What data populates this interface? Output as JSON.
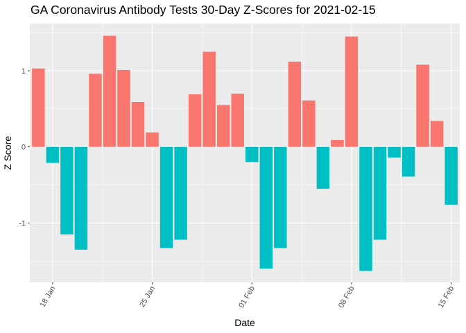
{
  "chart_data": {
    "type": "bar",
    "title": "GA Coronavirus Antibody Tests 30-Day Z-Scores for 2021-02-15",
    "xlabel": "Date",
    "ylabel": "Z Score",
    "x_ticks": [
      "18 Jan",
      "25 Jan",
      "01 Feb",
      "08 Feb",
      "15 Feb"
    ],
    "y_ticks": [
      "-1",
      "0",
      "1"
    ],
    "y_tick_values": [
      -1,
      0,
      1
    ],
    "ylim": [
      -1.78,
      1.62
    ],
    "start_date": "2021-01-17",
    "end_date": "2021-02-15",
    "grid": true,
    "legend": "none",
    "colors": {
      "positive": "#F8766D",
      "negative": "#00BFC4",
      "panel": "#EBEBEB",
      "grid": "#FFFFFF"
    },
    "dates": [
      "2021-01-17",
      "2021-01-18",
      "2021-01-19",
      "2021-01-20",
      "2021-01-21",
      "2021-01-22",
      "2021-01-23",
      "2021-01-24",
      "2021-01-25",
      "2021-01-26",
      "2021-01-27",
      "2021-01-28",
      "2021-01-29",
      "2021-01-30",
      "2021-01-31",
      "2021-02-01",
      "2021-02-02",
      "2021-02-03",
      "2021-02-04",
      "2021-02-05",
      "2021-02-06",
      "2021-02-07",
      "2021-02-08",
      "2021-02-09",
      "2021-02-10",
      "2021-02-11",
      "2021-02-12",
      "2021-02-13",
      "2021-02-14",
      "2021-02-15"
    ],
    "values": [
      1.03,
      -0.21,
      -1.15,
      -1.35,
      0.96,
      1.46,
      1.01,
      0.59,
      0.19,
      -1.33,
      -1.22,
      0.69,
      1.25,
      0.55,
      0.7,
      -0.2,
      -1.6,
      -1.33,
      1.12,
      0.61,
      -0.55,
      0.09,
      1.45,
      -1.63,
      -1.22,
      -0.14,
      -0.39,
      1.08,
      0.34,
      -0.76
    ]
  }
}
